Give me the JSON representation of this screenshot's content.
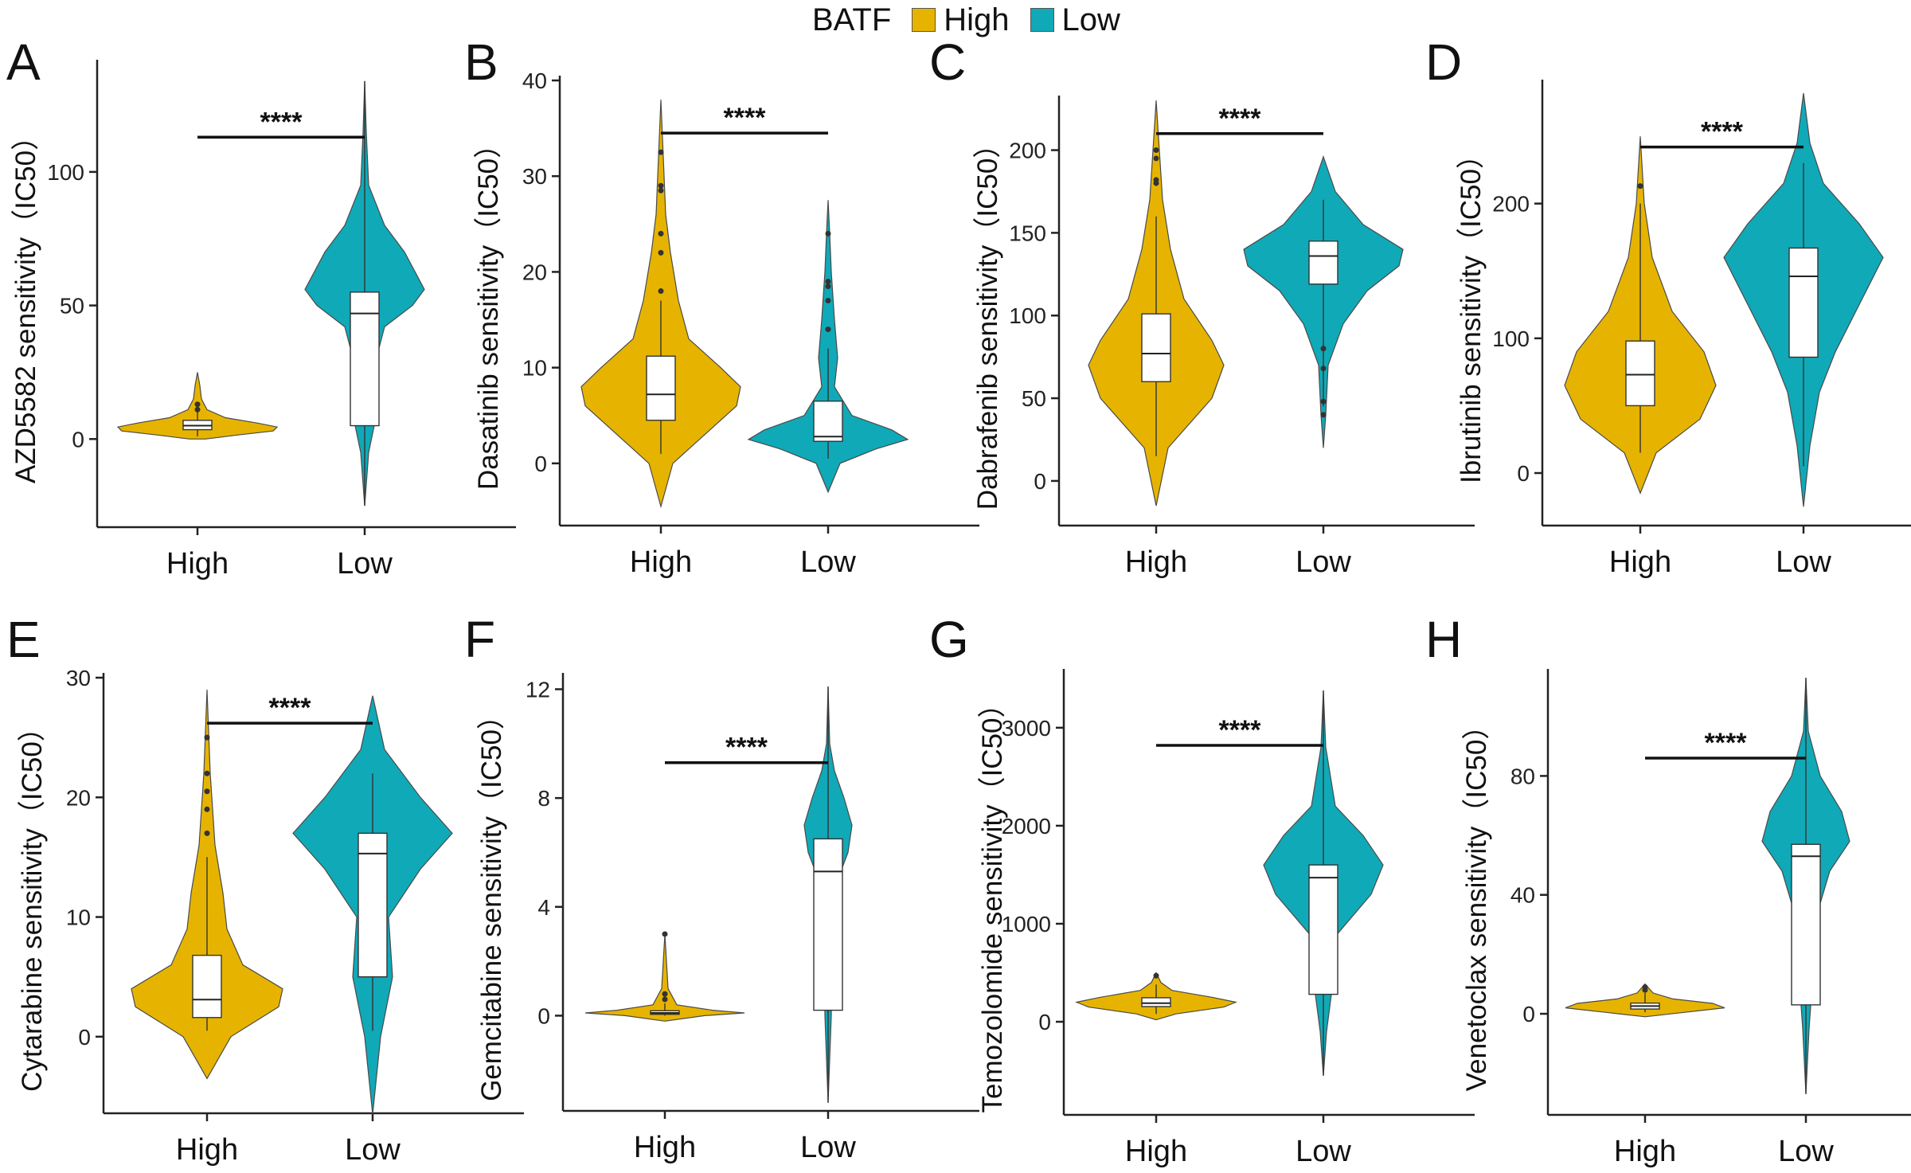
{
  "legend": {
    "title": "BATF",
    "items": [
      {
        "label": "High",
        "color": "#E6B400"
      },
      {
        "label": "Low",
        "color": "#10A9B8"
      }
    ]
  },
  "colors": {
    "high": "#E6B400",
    "low": "#10A9B8"
  },
  "chart_data": [
    {
      "panel": "A",
      "type": "violin",
      "ylabel": "AZD5582 sensitivity（IC50）",
      "categories": [
        "High",
        "Low"
      ],
      "ylim": [
        -33,
        142
      ],
      "yticks": [
        0,
        50,
        100
      ],
      "significance": "****",
      "sig_y": 113,
      "groups": [
        {
          "name": "High",
          "min": 0,
          "max": 25,
          "q1": 3.5,
          "median": 5,
          "q3": 7,
          "whisker_low": 1,
          "whisker_high": 12,
          "outliers": [
            13,
            11
          ],
          "density": [
            [
              0,
              0.1
            ],
            [
              1.5,
              0.5
            ],
            [
              3,
              0.95
            ],
            [
              4.5,
              1
            ],
            [
              6,
              0.75
            ],
            [
              8,
              0.35
            ],
            [
              11,
              0.12
            ],
            [
              15,
              0.05
            ],
            [
              20,
              0.03
            ],
            [
              25,
              0
            ]
          ]
        },
        {
          "name": "Low",
          "min": -25,
          "max": 134,
          "q1": 5,
          "median": 47,
          "q3": 55,
          "whisker_low": -25,
          "whisker_high": 134,
          "outliers": [],
          "density": [
            [
              -25,
              0
            ],
            [
              -5,
              0.05
            ],
            [
              5,
              0.12
            ],
            [
              25,
              0.1
            ],
            [
              42,
              0.25
            ],
            [
              50,
              0.6
            ],
            [
              56,
              0.75
            ],
            [
              70,
              0.5
            ],
            [
              80,
              0.25
            ],
            [
              95,
              0.05
            ],
            [
              115,
              0.02
            ],
            [
              134,
              0
            ]
          ]
        }
      ]
    },
    {
      "panel": "B",
      "type": "violin",
      "ylabel": "Dasatinib sensitivity（IC50）",
      "categories": [
        "High",
        "Low"
      ],
      "ylim": [
        -6.5,
        40.5
      ],
      "yticks": [
        0,
        10,
        20,
        30,
        40
      ],
      "significance": "****",
      "sig_y": 34.5,
      "groups": [
        {
          "name": "High",
          "min": -4.5,
          "max": 38,
          "q1": 4.5,
          "median": 7.2,
          "q3": 11.2,
          "whisker_low": 1,
          "whisker_high": 17,
          "outliers": [
            18,
            22,
            24,
            28.5,
            29,
            32.5
          ],
          "density": [
            [
              -4.5,
              0
            ],
            [
              0,
              0.15
            ],
            [
              3,
              0.55
            ],
            [
              6,
              0.95
            ],
            [
              8,
              1
            ],
            [
              10,
              0.75
            ],
            [
              13,
              0.35
            ],
            [
              17,
              0.22
            ],
            [
              22,
              0.12
            ],
            [
              26,
              0.06
            ],
            [
              30,
              0.04
            ],
            [
              34,
              0.02
            ],
            [
              38,
              0
            ]
          ]
        },
        {
          "name": "Low",
          "min": -3,
          "max": 27.5,
          "q1": 2.3,
          "median": 2.8,
          "q3": 6.5,
          "whisker_low": 0.5,
          "whisker_high": 12,
          "outliers": [
            14,
            17,
            18.5,
            19,
            24
          ],
          "density": [
            [
              -3,
              0
            ],
            [
              0,
              0.15
            ],
            [
              1.5,
              0.6
            ],
            [
              2.5,
              1
            ],
            [
              3.5,
              0.8
            ],
            [
              5,
              0.3
            ],
            [
              8,
              0.08
            ],
            [
              11,
              0.12
            ],
            [
              15,
              0.08
            ],
            [
              20,
              0.04
            ],
            [
              24,
              0.02
            ],
            [
              27.5,
              0
            ]
          ]
        }
      ]
    },
    {
      "panel": "C",
      "type": "violin",
      "ylabel": "Dabrafenib sensitivity（IC50）",
      "categories": [
        "High",
        "Low"
      ],
      "ylim": [
        -27,
        233
      ],
      "yticks": [
        0,
        50,
        100,
        150,
        200
      ],
      "significance": "****",
      "sig_y": 210,
      "groups": [
        {
          "name": "High",
          "min": -15,
          "max": 230,
          "q1": 60,
          "median": 77,
          "q3": 101,
          "whisker_low": 15,
          "whisker_high": 160,
          "outliers": [
            180,
            182,
            195,
            200
          ],
          "density": [
            [
              -15,
              0
            ],
            [
              20,
              0.15
            ],
            [
              50,
              0.7
            ],
            [
              70,
              0.85
            ],
            [
              85,
              0.7
            ],
            [
              110,
              0.35
            ],
            [
              140,
              0.18
            ],
            [
              170,
              0.08
            ],
            [
              200,
              0.04
            ],
            [
              230,
              0
            ]
          ]
        },
        {
          "name": "Low",
          "min": 20,
          "max": 196,
          "q1": 119,
          "median": 136,
          "q3": 145,
          "whisker_low": 45,
          "whisker_high": 170,
          "outliers": [
            40,
            48,
            68,
            80
          ],
          "density": [
            [
              20,
              0
            ],
            [
              40,
              0.03
            ],
            [
              70,
              0.06
            ],
            [
              95,
              0.25
            ],
            [
              115,
              0.55
            ],
            [
              130,
              0.95
            ],
            [
              140,
              1
            ],
            [
              155,
              0.5
            ],
            [
              175,
              0.15
            ],
            [
              196,
              0
            ]
          ]
        }
      ]
    },
    {
      "panel": "D",
      "type": "violin",
      "ylabel": "Ibrutinib sensitivity（IC50）",
      "categories": [
        "High",
        "Low"
      ],
      "ylim": [
        -39,
        292
      ],
      "yticks": [
        0,
        100,
        200
      ],
      "significance": "****",
      "sig_y": 242,
      "groups": [
        {
          "name": "High",
          "min": -15,
          "max": 250,
          "q1": 50,
          "median": 73,
          "q3": 98,
          "whisker_low": 15,
          "whisker_high": 200,
          "outliers": [
            213
          ],
          "density": [
            [
              -15,
              0
            ],
            [
              15,
              0.2
            ],
            [
              40,
              0.75
            ],
            [
              65,
              0.95
            ],
            [
              90,
              0.8
            ],
            [
              120,
              0.4
            ],
            [
              160,
              0.15
            ],
            [
              200,
              0.05
            ],
            [
              250,
              0
            ]
          ]
        },
        {
          "name": "Low",
          "min": -25,
          "max": 282,
          "q1": 86,
          "median": 146,
          "q3": 167,
          "whisker_low": 5,
          "whisker_high": 230,
          "outliers": [],
          "density": [
            [
              -25,
              0
            ],
            [
              20,
              0.08
            ],
            [
              60,
              0.2
            ],
            [
              90,
              0.4
            ],
            [
              125,
              0.7
            ],
            [
              160,
              1
            ],
            [
              185,
              0.7
            ],
            [
              215,
              0.25
            ],
            [
              245,
              0.08
            ],
            [
              282,
              0
            ]
          ]
        }
      ]
    },
    {
      "panel": "E",
      "type": "violin",
      "ylabel": "Cytarabine sensitivity（IC50）",
      "categories": [
        "High",
        "Low"
      ],
      "ylim": [
        -6.4,
        30.4
      ],
      "yticks": [
        0,
        10,
        20,
        30
      ],
      "significance": "****",
      "sig_y": 26.2,
      "groups": [
        {
          "name": "High",
          "min": -3.5,
          "max": 29,
          "q1": 1.6,
          "median": 3.1,
          "q3": 6.8,
          "whisker_low": 0.5,
          "whisker_high": 15,
          "outliers": [
            17,
            19,
            20.5,
            22,
            25
          ],
          "density": [
            [
              -3.5,
              0
            ],
            [
              0,
              0.3
            ],
            [
              2.5,
              0.9
            ],
            [
              4,
              0.95
            ],
            [
              6,
              0.45
            ],
            [
              9,
              0.25
            ],
            [
              12,
              0.2
            ],
            [
              16,
              0.1
            ],
            [
              22,
              0.04
            ],
            [
              29,
              0
            ]
          ]
        },
        {
          "name": "Low",
          "min": -6.5,
          "max": 28.5,
          "q1": 5,
          "median": 15.3,
          "q3": 17,
          "whisker_low": 0.5,
          "whisker_high": 22,
          "outliers": [],
          "density": [
            [
              -6.5,
              0
            ],
            [
              0,
              0.1
            ],
            [
              5,
              0.25
            ],
            [
              10,
              0.2
            ],
            [
              14,
              0.6
            ],
            [
              17,
              1
            ],
            [
              20,
              0.6
            ],
            [
              24,
              0.15
            ],
            [
              28.5,
              0
            ]
          ]
        }
      ]
    },
    {
      "panel": "F",
      "type": "violin",
      "ylabel": "Gemcitabine sensitivity（IC50）",
      "categories": [
        "High",
        "Low"
      ],
      "ylim": [
        -3.5,
        12.6
      ],
      "yticks": [
        0,
        4,
        8,
        12
      ],
      "significance": "****",
      "sig_y": 9.3,
      "groups": [
        {
          "name": "High",
          "min": -0.2,
          "max": 3,
          "q1": 0.05,
          "median": 0.1,
          "q3": 0.18,
          "whisker_low": 0,
          "whisker_high": 0.45,
          "outliers": [
            0.6,
            0.8,
            3.0
          ],
          "density": [
            [
              -0.2,
              0
            ],
            [
              0,
              0.5
            ],
            [
              0.1,
              1
            ],
            [
              0.2,
              0.6
            ],
            [
              0.4,
              0.15
            ],
            [
              1,
              0.04
            ],
            [
              3,
              0
            ]
          ]
        },
        {
          "name": "Low",
          "min": -3.2,
          "max": 12.1,
          "q1": 0.2,
          "median": 5.3,
          "q3": 6.5,
          "whisker_low": -3.2,
          "whisker_high": 12.1,
          "outliers": [],
          "density": [
            [
              -3.2,
              0
            ],
            [
              0,
              0.04
            ],
            [
              3,
              0.05
            ],
            [
              5,
              0.12
            ],
            [
              6,
              0.25
            ],
            [
              7,
              0.3
            ],
            [
              8,
              0.2
            ],
            [
              9,
              0.08
            ],
            [
              10,
              0.02
            ],
            [
              12.1,
              0
            ]
          ]
        }
      ]
    },
    {
      "panel": "G",
      "type": "violin",
      "ylabel": "Temozolomide sensitivity（IC50）",
      "categories": [
        "High",
        "Low"
      ],
      "ylim": [
        -950,
        3600
      ],
      "yticks": [
        0,
        1000,
        2000,
        3000
      ],
      "significance": "****",
      "sig_y": 2820,
      "groups": [
        {
          "name": "High",
          "min": 20,
          "max": 500,
          "q1": 155,
          "median": 190,
          "q3": 245,
          "whisker_low": 80,
          "whisker_high": 380,
          "outliers": [
            470
          ],
          "density": [
            [
              20,
              0
            ],
            [
              80,
              0.25
            ],
            [
              150,
              0.85
            ],
            [
              200,
              1
            ],
            [
              250,
              0.7
            ],
            [
              320,
              0.2
            ],
            [
              400,
              0.06
            ],
            [
              500,
              0
            ]
          ]
        },
        {
          "name": "Low",
          "min": -550,
          "max": 3380,
          "q1": 280,
          "median": 1470,
          "q3": 1600,
          "whisker_low": -550,
          "whisker_high": 3380,
          "outliers": [],
          "density": [
            [
              -550,
              0
            ],
            [
              -100,
              0.04
            ],
            [
              400,
              0.12
            ],
            [
              900,
              0.18
            ],
            [
              1300,
              0.6
            ],
            [
              1600,
              0.75
            ],
            [
              1900,
              0.5
            ],
            [
              2200,
              0.15
            ],
            [
              2800,
              0.03
            ],
            [
              3380,
              0
            ]
          ]
        }
      ]
    },
    {
      "panel": "H",
      "type": "violin",
      "ylabel": "Venetoclax sensitivity（IC50）",
      "categories": [
        "High",
        "Low"
      ],
      "ylim": [
        -34,
        116
      ],
      "yticks": [
        0,
        40,
        80
      ],
      "significance": "****",
      "sig_y": 86,
      "groups": [
        {
          "name": "High",
          "min": -1,
          "max": 10,
          "q1": 1.6,
          "median": 2.6,
          "q3": 3.6,
          "whisker_low": 0.5,
          "whisker_high": 7,
          "outliers": [
            8,
            9
          ],
          "density": [
            [
              -1,
              0
            ],
            [
              0.5,
              0.5
            ],
            [
              2,
              1
            ],
            [
              3.5,
              0.85
            ],
            [
              5,
              0.35
            ],
            [
              7,
              0.1
            ],
            [
              10,
              0
            ]
          ]
        },
        {
          "name": "Low",
          "min": -27,
          "max": 113,
          "q1": 3,
          "median": 53,
          "q3": 57,
          "whisker_low": -27,
          "whisker_high": 113,
          "outliers": [],
          "density": [
            [
              -27,
              0
            ],
            [
              -5,
              0.04
            ],
            [
              10,
              0.08
            ],
            [
              30,
              0.1
            ],
            [
              48,
              0.3
            ],
            [
              58,
              0.55
            ],
            [
              68,
              0.45
            ],
            [
              80,
              0.18
            ],
            [
              95,
              0.03
            ],
            [
              113,
              0
            ]
          ]
        }
      ]
    }
  ]
}
